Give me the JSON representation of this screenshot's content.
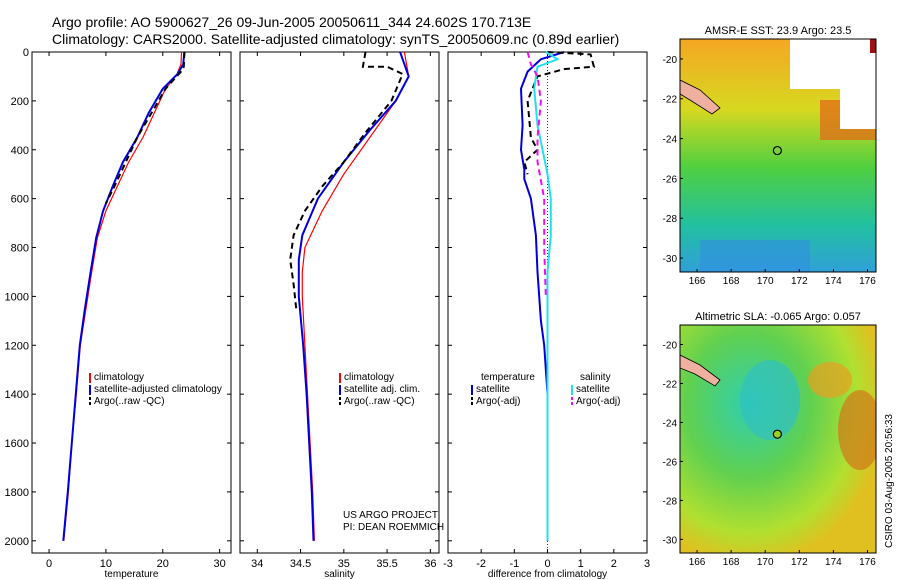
{
  "header": {
    "line1": "Argo profile: AO 5900627_26 09-Jun-2005 20050611_344 24.602S 170.713E",
    "line2": "Climatology: CARS2000. Satellite-adjusted climatology: synTS_20050609.nc (0.89d earlier)"
  },
  "colors": {
    "climatology": "#ff0000",
    "satellite": "#0000dd",
    "argo": "#000000",
    "sal_sat": "#22e0ee",
    "sal_argo": "#ee11ee"
  },
  "chart_data": [
    {
      "type": "line",
      "xlabel": "temperature",
      "xlim": [
        -3,
        32
      ],
      "ylim": [
        2050,
        0
      ],
      "xticks": [
        0,
        10,
        20,
        30
      ],
      "yticks": [
        0,
        200,
        400,
        600,
        800,
        1000,
        1200,
        1400,
        1600,
        1800,
        2000
      ],
      "series": [
        {
          "name": "climatology",
          "style": "solid",
          "color": "#ff0000",
          "points": [
            [
              23.3,
              0
            ],
            [
              23.2,
              50
            ],
            [
              22.5,
              90
            ],
            [
              20.5,
              150
            ],
            [
              18.5,
              250
            ],
            [
              16.5,
              350
            ],
            [
              14,
              450
            ],
            [
              12,
              550
            ],
            [
              10,
              650
            ],
            [
              8.5,
              760
            ],
            [
              7.5,
              900
            ],
            [
              6.5,
              1050
            ],
            [
              5.5,
              1200
            ],
            [
              4.8,
              1400
            ],
            [
              4,
              1600
            ],
            [
              3.4,
              1800
            ],
            [
              2.6,
              2000
            ]
          ]
        },
        {
          "name": "satellite-adjusted climatology",
          "style": "solid",
          "color": "#0000dd",
          "points": [
            [
              23.8,
              0
            ],
            [
              23.6,
              50
            ],
            [
              22.6,
              90
            ],
            [
              20,
              150
            ],
            [
              17.5,
              250
            ],
            [
              15.5,
              350
            ],
            [
              13,
              450
            ],
            [
              11.2,
              550
            ],
            [
              9.5,
              650
            ],
            [
              8.3,
              760
            ],
            [
              7.3,
              900
            ],
            [
              6.3,
              1050
            ],
            [
              5.4,
              1200
            ],
            [
              4.7,
              1400
            ],
            [
              4,
              1600
            ],
            [
              3.3,
              1800
            ],
            [
              2.5,
              2000
            ]
          ]
        },
        {
          "name": "Argo(..raw -QC)",
          "style": "dashed",
          "color": "#000000",
          "points": [
            [
              23.8,
              0
            ],
            [
              23.7,
              60
            ],
            [
              23.2,
              80
            ],
            [
              20.5,
              150
            ],
            [
              18,
              250
            ],
            [
              15.5,
              350
            ],
            [
              13.5,
              450
            ],
            [
              11.5,
              550
            ],
            [
              10,
              620
            ]
          ]
        }
      ],
      "legend": [
        "climatology",
        "satellite-adjusted climatology",
        "Argo(..raw -QC)"
      ]
    },
    {
      "type": "line",
      "xlabel": "salinity",
      "xlim": [
        33.8,
        36.1
      ],
      "ylim": [
        2050,
        0
      ],
      "xticks": [
        34,
        34.5,
        35,
        35.5,
        36
      ],
      "yticks": [
        0,
        200,
        400,
        600,
        800,
        1000,
        1200,
        1400,
        1600,
        1800,
        2000
      ],
      "series": [
        {
          "name": "climatology",
          "style": "solid",
          "color": "#ff0000",
          "points": [
            [
              35.7,
              0
            ],
            [
              35.75,
              100
            ],
            [
              35.6,
              200
            ],
            [
              35.3,
              350
            ],
            [
              35,
              500
            ],
            [
              34.75,
              650
            ],
            [
              34.55,
              800
            ],
            [
              34.52,
              900
            ],
            [
              34.52,
              1000
            ],
            [
              34.55,
              1200
            ],
            [
              34.58,
              1400
            ],
            [
              34.61,
              1600
            ],
            [
              34.64,
              1800
            ],
            [
              34.66,
              2000
            ]
          ]
        },
        {
          "name": "satellite adj. clim.",
          "style": "solid",
          "color": "#0000dd",
          "points": [
            [
              35.65,
              0
            ],
            [
              35.72,
              70
            ],
            [
              35.75,
              100
            ],
            [
              35.6,
              200
            ],
            [
              35.3,
              320
            ],
            [
              35,
              450
            ],
            [
              34.7,
              600
            ],
            [
              34.52,
              750
            ],
            [
              34.48,
              850
            ],
            [
              34.48,
              1000
            ],
            [
              34.53,
              1200
            ],
            [
              34.57,
              1400
            ],
            [
              34.6,
              1600
            ],
            [
              34.63,
              1800
            ],
            [
              34.65,
              2000
            ]
          ]
        },
        {
          "name": "Argo(..raw -QC)",
          "style": "dashed",
          "color": "#000000",
          "points": [
            [
              35.25,
              0
            ],
            [
              35.22,
              60
            ],
            [
              35.5,
              60
            ],
            [
              35.68,
              90
            ],
            [
              35.55,
              200
            ],
            [
              35.25,
              330
            ],
            [
              35,
              450
            ],
            [
              34.75,
              550
            ],
            [
              34.55,
              650
            ],
            [
              34.42,
              750
            ],
            [
              34.38,
              850
            ],
            [
              34.42,
              950
            ],
            [
              34.45,
              1050
            ]
          ]
        }
      ],
      "legend": [
        "climatology",
        "satellite adj. clim.",
        "Argo(..raw -QC)"
      ],
      "annotation": [
        "US ARGO PROJECT",
        "PI: DEAN ROEMMICH"
      ]
    },
    {
      "type": "line",
      "xlabel": "difference from climatology",
      "xlim": [
        -3,
        3
      ],
      "ylim": [
        2050,
        0
      ],
      "xticks": [
        -3,
        -2,
        -1,
        0,
        1,
        2,
        3
      ],
      "yticks": [
        0,
        200,
        400,
        600,
        800,
        1000,
        1200,
        1400,
        1600,
        1800,
        2000
      ],
      "series": [
        {
          "name": "temperature satellite",
          "style": "solid",
          "color": "#0000dd",
          "points": [
            [
              0.5,
              0
            ],
            [
              -0.2,
              30
            ],
            [
              -0.6,
              80
            ],
            [
              -0.8,
              150
            ],
            [
              -0.75,
              300
            ],
            [
              -0.8,
              400
            ],
            [
              -0.7,
              480
            ],
            [
              -0.7,
              520
            ],
            [
              -0.5,
              600
            ],
            [
              -0.35,
              750
            ],
            [
              -0.3,
              900
            ],
            [
              -0.2,
              1100
            ],
            [
              -0.1,
              1200
            ],
            [
              0,
              1400
            ],
            [
              0,
              2000
            ]
          ]
        },
        {
          "name": "temperature Argo(-adj)",
          "style": "dashed",
          "color": "#000000",
          "points": [
            [
              0,
              0
            ],
            [
              1.3,
              10
            ],
            [
              1.4,
              60
            ],
            [
              0.5,
              70
            ],
            [
              -0.3,
              100
            ],
            [
              -0.6,
              200
            ],
            [
              -0.5,
              350
            ],
            [
              -0.3,
              400
            ],
            [
              -0.7,
              450
            ],
            [
              -0.6,
              500
            ]
          ]
        },
        {
          "name": "salinity satellite",
          "style": "solid",
          "color": "#22e0ee",
          "points": [
            [
              -0.05,
              0
            ],
            [
              0.3,
              30
            ],
            [
              -0.3,
              60
            ],
            [
              -0.4,
              150
            ],
            [
              -0.3,
              300
            ],
            [
              0,
              500
            ],
            [
              0.1,
              600
            ],
            [
              0.1,
              750
            ],
            [
              0,
              900
            ],
            [
              0,
              2000
            ]
          ]
        },
        {
          "name": "salinity Argo(-adj)",
          "style": "dashed",
          "color": "#ee11ee",
          "points": [
            [
              -0.6,
              0
            ],
            [
              -0.5,
              50
            ],
            [
              -0.3,
              100
            ],
            [
              -0.2,
              200
            ],
            [
              -0.3,
              350
            ],
            [
              -0.3,
              450
            ],
            [
              -0.1,
              600
            ],
            [
              -0.1,
              800
            ],
            [
              -0.05,
              1000
            ]
          ]
        }
      ],
      "legend_left_title": "temperature",
      "legend_left": [
        "satellite",
        "Argo(-adj)"
      ],
      "legend_right_title": "salinity",
      "legend_right": [
        "satellite",
        "Argo(-adj)"
      ]
    },
    {
      "type": "heatmap",
      "title": "AMSR-E SST: 23.9 Argo: 23.5",
      "xlim": [
        165,
        176.5
      ],
      "ylim": [
        -30.7,
        -19
      ],
      "xticks": [
        166,
        168,
        170,
        172,
        174,
        176
      ],
      "yticks": [
        -20,
        -22,
        -24,
        -26,
        -28,
        -30
      ],
      "argo_location": [
        170.713,
        -24.602
      ]
    },
    {
      "type": "heatmap",
      "title": "Altimetric SLA: -0.065 Argo: 0.057",
      "xlim": [
        165,
        176.5
      ],
      "ylim": [
        -30.7,
        -19
      ],
      "xticks": [
        166,
        168,
        170,
        172,
        174,
        176
      ],
      "yticks": [
        -20,
        -22,
        -24,
        -26,
        -28,
        -30
      ],
      "argo_location": [
        170.713,
        -24.602
      ]
    }
  ],
  "credit": "CSIRO 03-Aug-2005 20:56:33"
}
